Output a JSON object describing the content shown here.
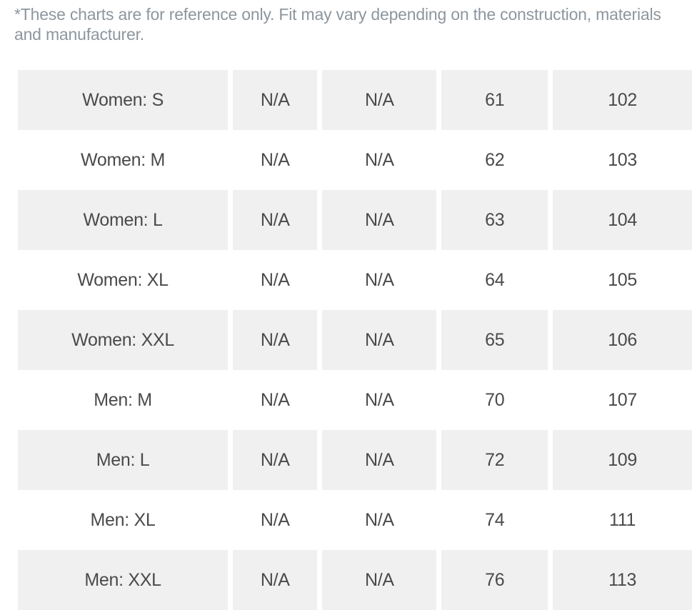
{
  "note": "*These charts are for reference only. Fit may vary depending on the construction, materials and manufacturer.",
  "rows": [
    [
      "Women: S",
      "N/A",
      "N/A",
      "61",
      "102"
    ],
    [
      "Women: M",
      "N/A",
      "N/A",
      "62",
      "103"
    ],
    [
      "Women: L",
      "N/A",
      "N/A",
      "63",
      "104"
    ],
    [
      "Women: XL",
      "N/A",
      "N/A",
      "64",
      "105"
    ],
    [
      "Women: XXL",
      "N/A",
      "N/A",
      "65",
      "106"
    ],
    [
      "Men: M",
      "N/A",
      "N/A",
      "70",
      "107"
    ],
    [
      "Men: L",
      "N/A",
      "N/A",
      "72",
      "109"
    ],
    [
      "Men: XL",
      "N/A",
      "N/A",
      "74",
      "111"
    ],
    [
      "Men: XXL",
      "N/A",
      "N/A",
      "76",
      "113"
    ]
  ]
}
